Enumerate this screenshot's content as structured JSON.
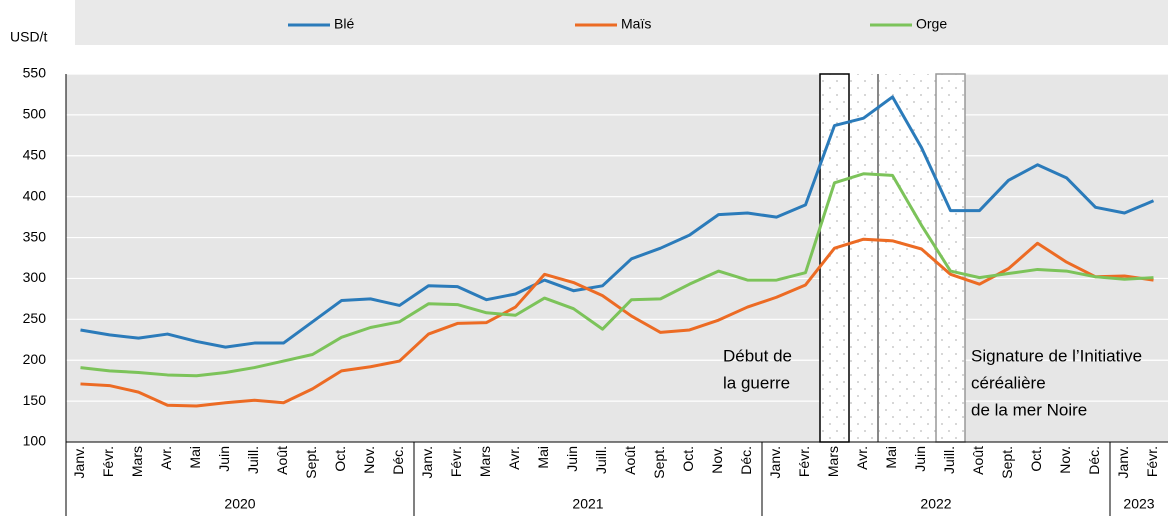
{
  "chart_data": {
    "type": "line",
    "y_unit": "USD/t",
    "categories": [
      "Janv.",
      "Févr.",
      "Mars",
      "Avr.",
      "Mai",
      "Juin",
      "Juill.",
      "Août",
      "Sept.",
      "Oct.",
      "Nov.",
      "Déc.",
      "Janv.",
      "Févr.",
      "Mars",
      "Avr.",
      "Mai",
      "Juin",
      "Juill.",
      "Août",
      "Sept.",
      "Oct.",
      "Nov.",
      "Déc.",
      "Janv.",
      "Févr.",
      "Mars",
      "Avr.",
      "Mai",
      "Juin",
      "Juill.",
      "Août",
      "Sept.",
      "Oct.",
      "Nov.",
      "Déc.",
      "Janv.",
      "Févr."
    ],
    "x_group_labels": [
      "2020",
      "2021",
      "2022",
      "2023"
    ],
    "series": [
      {
        "name": "Blé",
        "color": "#2b7bba",
        "values": [
          237,
          231,
          227,
          232,
          223,
          216,
          221,
          221,
          247,
          273,
          275,
          267,
          291,
          290,
          274,
          281,
          298,
          285,
          291,
          324,
          337,
          353,
          378,
          380,
          375,
          390,
          487,
          496,
          522,
          460,
          383,
          383,
          420,
          439,
          423,
          387,
          380,
          395
        ]
      },
      {
        "name": "Maïs",
        "color": "#ec6b24",
        "values": [
          171,
          169,
          161,
          145,
          144,
          148,
          151,
          148,
          165,
          187,
          192,
          199,
          232,
          245,
          246,
          265,
          305,
          295,
          279,
          254,
          234,
          237,
          249,
          265,
          277,
          292,
          337,
          348,
          346,
          336,
          305,
          293,
          312,
          343,
          320,
          302,
          303,
          298
        ]
      },
      {
        "name": "Orge",
        "color": "#7cc35a",
        "values": [
          191,
          187,
          185,
          182,
          181,
          185,
          191,
          199,
          207,
          228,
          240,
          247,
          269,
          268,
          258,
          255,
          276,
          263,
          238,
          274,
          275,
          293,
          309,
          298,
          298,
          307,
          417,
          428,
          426,
          365,
          309,
          301,
          306,
          311,
          309,
          302,
          299,
          301
        ]
      }
    ],
    "ylim": [
      100,
      550
    ],
    "yticks": [
      100,
      150,
      200,
      250,
      300,
      350,
      400,
      450,
      500,
      550
    ],
    "grid": true,
    "annotations": [
      [
        "Début de",
        "la guerre"
      ],
      [
        "Signature de l’Initiative",
        "céréalière",
        "de la mer Noire"
      ]
    ]
  }
}
